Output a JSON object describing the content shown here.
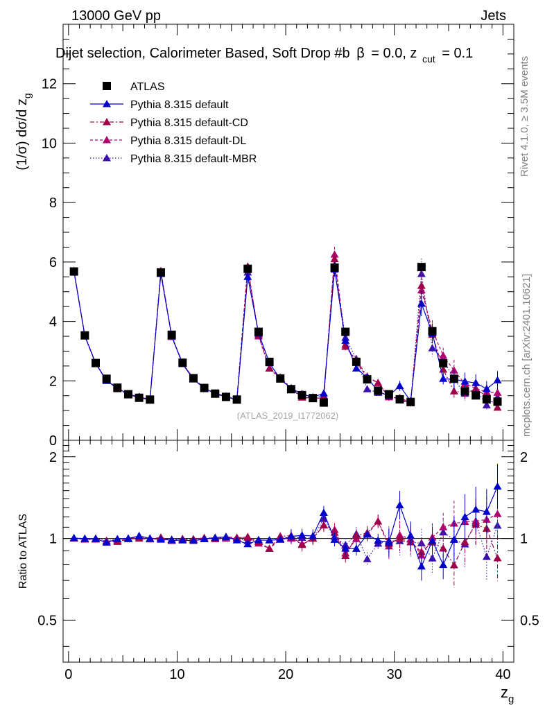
{
  "header": {
    "energy": "13000 GeV pp",
    "category": "Jets",
    "selection": "Dijet selection, Calorimeter Based, Soft Drop #b",
    "beta_part": "= 0.0, z",
    "cut_sub": "cut",
    "zcut_part": "= 0.1",
    "watermark": "(ATLAS_2019_I1772062)",
    "rivet_label": "Rivet 4.1.0, ≥ 3.5M events",
    "mcplots_label": "mcplots.cern.ch [arXiv:2401.10621]"
  },
  "colors": {
    "atlas": "#000000",
    "default": "#0000cc",
    "cd": "#a0004a",
    "dl": "#b00070",
    "mbr": "#3a10b0"
  },
  "chart_data": [
    {
      "type": "line",
      "title": "Dijet selection, Calorimeter Based, Soft Drop",
      "ylabel": "(1/σ) dσ/d z_g",
      "xlim": [
        -0.5,
        41
      ],
      "ylim": [
        0,
        14
      ],
      "yticks": [
        0,
        2,
        4,
        6,
        8,
        10,
        12
      ],
      "legend_position": "top-left",
      "x": [
        0.5,
        1.5,
        2.5,
        3.5,
        4.5,
        5.5,
        6.5,
        7.5,
        8.5,
        9.5,
        10.5,
        11.5,
        12.5,
        13.5,
        14.5,
        15.5,
        16.5,
        17.5,
        18.5,
        19.5,
        20.5,
        21.5,
        22.5,
        23.5,
        24.5,
        25.5,
        26.5,
        27.5,
        28.5,
        29.5,
        30.5,
        31.5,
        32.5,
        33.5,
        34.5,
        35.5,
        36.5,
        37.5,
        38.5,
        39.5
      ],
      "series": [
        {
          "name": "ATLAS",
          "color_key": "atlas",
          "marker": "square",
          "values": [
            5.68,
            3.53,
            2.6,
            2.07,
            1.77,
            1.55,
            1.43,
            1.37,
            5.65,
            3.55,
            2.61,
            2.09,
            1.76,
            1.57,
            1.46,
            1.37,
            5.77,
            3.65,
            2.64,
            2.08,
            1.72,
            1.52,
            1.42,
            1.27,
            5.81,
            3.65,
            2.64,
            2.05,
            1.67,
            1.55,
            1.38,
            1.29,
            5.83,
            3.67,
            2.59,
            2.07,
            1.65,
            1.51,
            1.38,
            1.3
          ]
        },
        {
          "name": "Pythia 8.315 default",
          "color_key": "default",
          "marker": "triangle",
          "values": [
            5.7,
            3.52,
            2.59,
            2.0,
            1.76,
            1.55,
            1.46,
            1.37,
            5.6,
            3.5,
            2.57,
            2.05,
            1.75,
            1.58,
            1.48,
            1.35,
            5.5,
            3.6,
            2.6,
            2.06,
            1.75,
            1.56,
            1.45,
            1.58,
            5.75,
            3.35,
            2.42,
            2.12,
            1.64,
            1.5,
            1.83,
            1.32,
            4.6,
            3.6,
            2.07,
            2.05,
            1.98,
            1.93,
            1.73,
            2.02
          ]
        },
        {
          "name": "Pythia 8.315 default-CD",
          "color_key": "cd",
          "marker": "triangle",
          "dash": "6,3,2,3",
          "values": [
            5.68,
            3.5,
            2.58,
            2.02,
            1.72,
            1.54,
            1.43,
            1.36,
            5.7,
            3.5,
            2.6,
            2.07,
            1.76,
            1.58,
            1.48,
            1.38,
            5.82,
            3.55,
            2.42,
            2.12,
            1.76,
            1.44,
            1.42,
            1.42,
            6.1,
            3.15,
            2.7,
            2.15,
            1.93,
            1.48,
            1.38,
            1.25,
            5.2,
            3.55,
            2.38,
            1.65,
            1.6,
            1.7,
            1.5,
            1.1
          ]
        },
        {
          "name": "Pythia 8.315 default-DL",
          "color_key": "dl",
          "marker": "triangle",
          "dash": "4,3",
          "values": [
            5.7,
            3.5,
            2.58,
            2.02,
            1.74,
            1.55,
            1.45,
            1.37,
            5.68,
            3.48,
            2.58,
            2.08,
            1.77,
            1.56,
            1.46,
            1.37,
            5.85,
            3.5,
            2.42,
            2.07,
            1.72,
            1.45,
            1.42,
            1.42,
            6.25,
            3.22,
            2.63,
            2.12,
            1.93,
            1.45,
            1.42,
            1.28,
            5.05,
            3.7,
            2.85,
            2.35,
            1.9,
            1.75,
            1.62,
            1.6
          ]
        },
        {
          "name": "Pythia 8.315 default-MBR",
          "color_key": "mbr",
          "marker": "triangle",
          "dash": "1.5,2.5",
          "values": [
            5.7,
            3.53,
            2.6,
            2.03,
            1.76,
            1.55,
            1.46,
            1.37,
            5.65,
            3.52,
            2.6,
            2.07,
            1.76,
            1.57,
            1.47,
            1.37,
            5.65,
            3.6,
            2.6,
            2.07,
            1.73,
            1.53,
            1.42,
            1.5,
            5.9,
            3.45,
            2.74,
            1.72,
            1.6,
            1.52,
            1.35,
            1.25,
            5.6,
            3.1,
            2.73,
            2.05,
            1.57,
            1.73,
            1.18,
            1.45
          ]
        }
      ]
    },
    {
      "type": "line",
      "title": "Ratio",
      "ylabel": "Ratio to ATLAS",
      "xlabel": "z_g",
      "xlim": [
        -0.5,
        41
      ],
      "ylim": [
        0.35,
        2.3
      ],
      "ytick_labels": [
        "0.5",
        "1",
        "2"
      ],
      "xtick_labels": [
        "0",
        "10",
        "20",
        "30",
        "40"
      ],
      "reference_line": 1.0,
      "series_names": [
        "Pythia 8.315 default",
        "Pythia 8.315 default-CD",
        "Pythia 8.315 default-DL",
        "Pythia 8.315 default-MBR"
      ]
    }
  ]
}
